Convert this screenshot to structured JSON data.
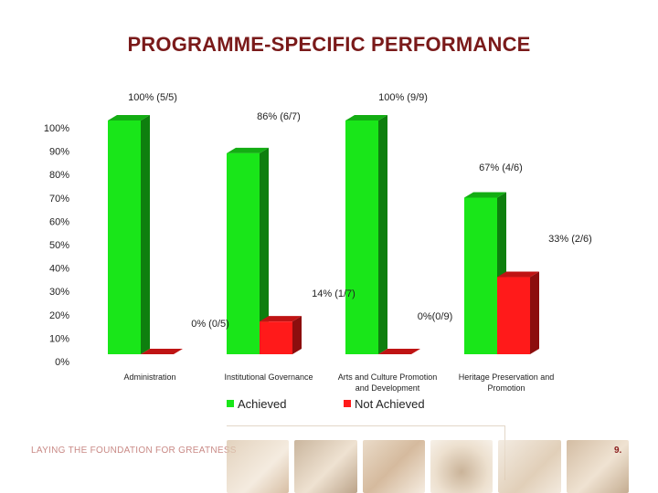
{
  "slide": {
    "title": "PROGRAMME-SPECIFIC PERFORMANCE",
    "footer_tagline": "LAYING THE FOUNDATION FOR GREATNESS",
    "page_number": "9."
  },
  "colors": {
    "title": "#7a1a1a",
    "achieved": "#19e619",
    "not_achieved": "#ff1a1a"
  },
  "chart_data": {
    "type": "bar",
    "title": "",
    "xlabel": "",
    "ylabel": "",
    "ylim": [
      0,
      100
    ],
    "grid": false,
    "three_d": true,
    "legend": "bottom",
    "y_ticks": [
      "0%",
      "10%",
      "20%",
      "30%",
      "40%",
      "50%",
      "60%",
      "70%",
      "80%",
      "90%",
      "100%"
    ],
    "categories": [
      [
        "Administration"
      ],
      [
        "Institutional Governance"
      ],
      [
        "Arts and Culture Promotion",
        "and Development"
      ],
      [
        "Heritage Preservation and",
        "Promotion"
      ]
    ],
    "series": [
      {
        "name": "Achieved",
        "color": "#19e619",
        "values": [
          100,
          86,
          100,
          67
        ],
        "labels": [
          "100% (5/5)",
          "86% (6/7)",
          "100% (9/9)",
          "67% (4/6)"
        ]
      },
      {
        "name": "Not Achieved",
        "color": "#ff1a1a",
        "values": [
          0,
          14,
          0,
          33
        ],
        "labels": [
          "0% (0/5)",
          "14% (1/7)",
          "0%(0/9)",
          "33% (2/6)"
        ]
      }
    ]
  }
}
